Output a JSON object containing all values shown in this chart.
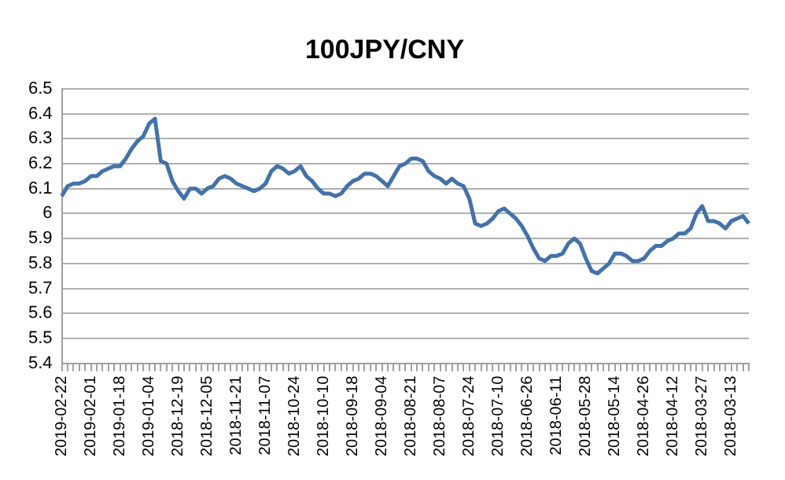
{
  "chart_data": {
    "type": "line",
    "title": "100JPY/CNY",
    "categories": [
      "2019-02-22",
      null,
      null,
      null,
      null,
      "2019-02-01",
      null,
      null,
      null,
      null,
      "2019-01-18",
      null,
      null,
      null,
      null,
      "2019-01-04",
      null,
      null,
      null,
      null,
      "2018-12-19",
      null,
      null,
      null,
      null,
      "2018-12-05",
      null,
      null,
      null,
      null,
      "2018-11-21",
      null,
      null,
      null,
      null,
      "2018-11-07",
      null,
      null,
      null,
      null,
      "2018-10-24",
      null,
      null,
      null,
      null,
      "2018-10-10",
      null,
      null,
      null,
      null,
      "2018-09-18",
      null,
      null,
      null,
      null,
      "2018-09-04",
      null,
      null,
      null,
      null,
      "2018-08-21",
      null,
      null,
      null,
      null,
      "2018-08-07",
      null,
      null,
      null,
      null,
      "2018-07-24",
      null,
      null,
      null,
      null,
      "2018-07-10",
      null,
      null,
      null,
      null,
      "2018-06-26",
      null,
      null,
      null,
      null,
      "2018-06-11",
      null,
      null,
      null,
      null,
      "2018-05-28",
      null,
      null,
      null,
      null,
      "2018-05-14",
      null,
      null,
      null,
      null,
      "2018-04-26",
      null,
      null,
      null,
      null,
      "2018-04-12",
      null,
      null,
      null,
      null,
      "2018-03-27",
      null,
      null,
      null,
      null,
      "2018-03-13",
      null,
      null,
      null
    ],
    "series": [
      {
        "color": "#4372a8",
        "values": [
          6.07,
          6.11,
          6.12,
          6.12,
          6.13,
          6.15,
          6.15,
          6.17,
          6.18,
          6.19,
          6.19,
          6.22,
          6.26,
          6.29,
          6.31,
          6.36,
          6.38,
          6.21,
          6.2,
          6.13,
          6.09,
          6.06,
          6.1,
          6.1,
          6.08,
          6.1,
          6.11,
          6.14,
          6.15,
          6.14,
          6.12,
          6.11,
          6.1,
          6.09,
          6.1,
          6.12,
          6.17,
          6.19,
          6.18,
          6.16,
          6.17,
          6.19,
          6.15,
          6.13,
          6.1,
          6.08,
          6.08,
          6.07,
          6.08,
          6.11,
          6.13,
          6.14,
          6.16,
          6.16,
          6.15,
          6.13,
          6.11,
          6.15,
          6.19,
          6.2,
          6.22,
          6.22,
          6.21,
          6.17,
          6.15,
          6.14,
          6.12,
          6.14,
          6.12,
          6.11,
          6.06,
          5.96,
          5.95,
          5.96,
          5.98,
          6.01,
          6.02,
          6.0,
          5.98,
          5.95,
          5.91,
          5.86,
          5.82,
          5.81,
          5.83,
          5.83,
          5.84,
          5.88,
          5.9,
          5.88,
          5.82,
          5.77,
          5.76,
          5.78,
          5.8,
          5.84,
          5.84,
          5.83,
          5.81,
          5.81,
          5.82,
          5.85,
          5.87,
          5.87,
          5.89,
          5.9,
          5.92,
          5.92,
          5.94,
          6.0,
          6.03,
          5.97,
          5.97,
          5.96,
          5.94,
          5.97,
          5.98,
          5.99,
          5.96
        ]
      }
    ],
    "ylim": [
      5.4,
      6.5
    ],
    "yticks": [
      5.4,
      5.5,
      5.6,
      5.7,
      5.8,
      5.9,
      6,
      6.1,
      6.2,
      6.3,
      6.4,
      6.5
    ],
    "grid": "y",
    "marker": "none",
    "line_style": "solid"
  }
}
